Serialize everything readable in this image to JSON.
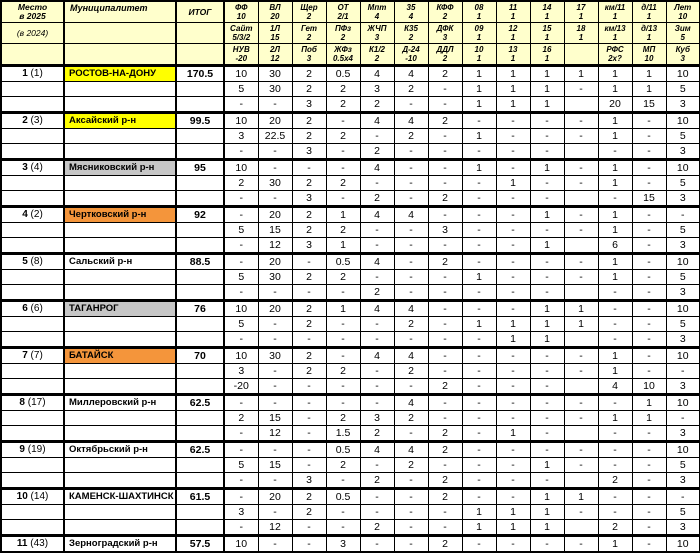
{
  "colors": {
    "header_bg": "#FFFFCC",
    "grid": "#000000",
    "highlights": {
      "yellow": "#FFFF00",
      "gray": "#C6C6C6",
      "orange": "#F4953B",
      "none": "#FFFFFF"
    }
  },
  "table": {
    "header": {
      "place": {
        "line1": "Место",
        "line2": "в 2025",
        "prev": "(в 2024)"
      },
      "municipality_label": "Муниципалитет",
      "total_label": "ИТОГ",
      "columns": [
        [
          [
            "ФФ",
            "10"
          ],
          [
            "Сайт",
            "5/3/2"
          ],
          [
            "НУВ",
            "-20"
          ]
        ],
        [
          [
            "ВЛ",
            "20"
          ],
          [
            "1Л",
            "15"
          ],
          [
            "2Л",
            "12"
          ]
        ],
        [
          [
            "Щер",
            "2"
          ],
          [
            "Гет",
            "2"
          ],
          [
            "Поб",
            "3"
          ]
        ],
        [
          [
            "ОТ",
            "2/1"
          ],
          [
            "ПФз",
            "2"
          ],
          [
            "ЖФз",
            "0.5х4"
          ]
        ],
        [
          [
            "Мпт",
            "4"
          ],
          [
            "ЖЧП",
            "3"
          ],
          [
            "К1/2",
            "2"
          ]
        ],
        [
          [
            "35",
            "4"
          ],
          [
            "К35",
            "2"
          ],
          [
            "Д-24",
            "-10"
          ]
        ],
        [
          [
            "КФФ",
            "2"
          ],
          [
            "ДФК",
            "3"
          ],
          [
            "ДДЛ",
            "2"
          ]
        ],
        [
          [
            "08",
            "1"
          ],
          [
            "09",
            "1"
          ],
          [
            "10",
            "1"
          ]
        ],
        [
          [
            "11",
            "1"
          ],
          [
            "12",
            "1"
          ],
          [
            "13",
            "1"
          ]
        ],
        [
          [
            "14",
            "1"
          ],
          [
            "15",
            "1"
          ],
          [
            "16",
            "1"
          ]
        ],
        [
          [
            "17",
            "1"
          ],
          [
            "18",
            "1"
          ],
          [
            "",
            ""
          ]
        ],
        [
          [
            "км/11",
            "1"
          ],
          [
            "км/13",
            "1"
          ],
          [
            "РФС",
            "2х?"
          ]
        ],
        [
          [
            "д/11",
            "1"
          ],
          [
            "д/13",
            "1"
          ],
          [
            "МП",
            "10"
          ]
        ],
        [
          [
            "Лет",
            "10"
          ],
          [
            "Зим",
            "5"
          ],
          [
            "Куб",
            "3"
          ]
        ]
      ]
    },
    "rows": [
      {
        "place": "1",
        "prev": "(1)",
        "name": "РОСТОВ-НА-ДОНУ",
        "highlight": "yellow",
        "total": "170.5",
        "sub": [
          [
            "10",
            "30",
            "2",
            "0.5",
            "4",
            "4",
            "2",
            "1",
            "1",
            "1",
            "1",
            "1",
            "1",
            "10"
          ],
          [
            "5",
            "30",
            "2",
            "2",
            "3",
            "2",
            "-",
            "1",
            "1",
            "1",
            "-",
            "1",
            "1",
            "5"
          ],
          [
            "-",
            "-",
            "3",
            "2",
            "2",
            "-",
            "-",
            "1",
            "1",
            "1",
            "",
            "20",
            "15",
            "3"
          ]
        ]
      },
      {
        "place": "2",
        "prev": "(3)",
        "name": "Аксайский р-н",
        "highlight": "yellow",
        "total": "99.5",
        "sub": [
          [
            "10",
            "20",
            "2",
            "-",
            "4",
            "4",
            "2",
            "-",
            "-",
            "-",
            "-",
            "1",
            "-",
            "10"
          ],
          [
            "3",
            "22.5",
            "2",
            "2",
            "-",
            "2",
            "-",
            "1",
            "-",
            "-",
            "-",
            "1",
            "-",
            "5"
          ],
          [
            "-",
            "-",
            "3",
            "-",
            "2",
            "-",
            "-",
            "-",
            "-",
            "-",
            "",
            "-",
            "-",
            "3"
          ]
        ]
      },
      {
        "place": "3",
        "prev": "(4)",
        "name": "Мясниковский р-н",
        "highlight": "gray",
        "total": "95",
        "sub": [
          [
            "10",
            "-",
            "-",
            "-",
            "4",
            "-",
            "-",
            "1",
            "-",
            "1",
            "-",
            "1",
            "-",
            "10"
          ],
          [
            "2",
            "30",
            "2",
            "2",
            "-",
            "-",
            "-",
            "-",
            "1",
            "-",
            "-",
            "1",
            "-",
            "5"
          ],
          [
            "-",
            "-",
            "3",
            "-",
            "2",
            "-",
            "2",
            "-",
            "-",
            "-",
            "",
            "-",
            "15",
            "3"
          ]
        ]
      },
      {
        "place": "4",
        "prev": "(2)",
        "name": "Чертковский р-н",
        "highlight": "orange",
        "total": "92",
        "sub": [
          [
            "-",
            "20",
            "2",
            "1",
            "4",
            "4",
            "-",
            "-",
            "-",
            "1",
            "-",
            "1",
            "-",
            "-"
          ],
          [
            "5",
            "15",
            "2",
            "2",
            "-",
            "-",
            "3",
            "-",
            "-",
            "-",
            "-",
            "1",
            "-",
            "5"
          ],
          [
            "-",
            "12",
            "3",
            "1",
            "-",
            "-",
            "-",
            "-",
            "-",
            "1",
            "",
            "6",
            "-",
            "3"
          ]
        ]
      },
      {
        "place": "5",
        "prev": "(8)",
        "name": "Сальский р-н",
        "highlight": "none",
        "total": "88.5",
        "sub": [
          [
            "-",
            "20",
            "-",
            "0.5",
            "4",
            "-",
            "2",
            "-",
            "-",
            "-",
            "-",
            "1",
            "-",
            "10"
          ],
          [
            "5",
            "30",
            "2",
            "2",
            "-",
            "-",
            "-",
            "1",
            "-",
            "-",
            "-",
            "1",
            "-",
            "5"
          ],
          [
            "-",
            "-",
            "-",
            "-",
            "2",
            "-",
            "-",
            "-",
            "-",
            "-",
            "",
            "-",
            "-",
            "3"
          ]
        ]
      },
      {
        "place": "6",
        "prev": "(6)",
        "name": "ТАГАНРОГ",
        "highlight": "gray",
        "total": "76",
        "sub": [
          [
            "10",
            "20",
            "2",
            "1",
            "4",
            "4",
            "-",
            "-",
            "-",
            "1",
            "1",
            "-",
            "-",
            "10"
          ],
          [
            "5",
            "-",
            "2",
            "-",
            "-",
            "2",
            "-",
            "1",
            "1",
            "1",
            "1",
            "-",
            "-",
            "5"
          ],
          [
            "-",
            "-",
            "-",
            "-",
            "-",
            "-",
            "-",
            "-",
            "1",
            "1",
            "",
            "-",
            "-",
            "3"
          ]
        ]
      },
      {
        "place": "7",
        "prev": "(7)",
        "name": "БАТАЙСК",
        "highlight": "orange",
        "total": "70",
        "sub": [
          [
            "10",
            "30",
            "2",
            "-",
            "4",
            "4",
            "-",
            "-",
            "-",
            "-",
            "-",
            "1",
            "-",
            "10"
          ],
          [
            "3",
            "-",
            "2",
            "2",
            "-",
            "2",
            "-",
            "-",
            "-",
            "-",
            "-",
            "1",
            "-",
            "-"
          ],
          [
            "-20",
            "-",
            "-",
            "-",
            "-",
            "-",
            "2",
            "-",
            "-",
            "-",
            "",
            "4",
            "10",
            "3"
          ]
        ]
      },
      {
        "place": "8",
        "prev": "(17)",
        "name": "Миллеровский р-н",
        "highlight": "none",
        "total": "62.5",
        "sub": [
          [
            "-",
            "-",
            "-",
            "-",
            "-",
            "4",
            "-",
            "-",
            "-",
            "-",
            "-",
            "-",
            "1",
            "10"
          ],
          [
            "2",
            "15",
            "-",
            "2",
            "3",
            "2",
            "-",
            "-",
            "-",
            "-",
            "-",
            "1",
            "1",
            "-"
          ],
          [
            "-",
            "12",
            "-",
            "1.5",
            "2",
            "-",
            "2",
            "-",
            "1",
            "-",
            "",
            "-",
            "-",
            "3"
          ]
        ]
      },
      {
        "place": "9",
        "prev": "(19)",
        "name": "Октябрьский р-н",
        "highlight": "none",
        "total": "62.5",
        "sub": [
          [
            "-",
            "-",
            "-",
            "0.5",
            "4",
            "4",
            "2",
            "-",
            "-",
            "-",
            "-",
            "-",
            "-",
            "10"
          ],
          [
            "5",
            "15",
            "-",
            "2",
            "-",
            "2",
            "-",
            "-",
            "-",
            "1",
            "-",
            "-",
            "-",
            "5"
          ],
          [
            "-",
            "-",
            "3",
            "-",
            "2",
            "-",
            "2",
            "-",
            "-",
            "-",
            "",
            "2",
            "-",
            "3"
          ]
        ]
      },
      {
        "place": "10",
        "prev": "(14)",
        "name": "КАМЕНСК-ШАХТИНСК",
        "highlight": "none",
        "total": "61.5",
        "sub": [
          [
            "-",
            "20",
            "2",
            "0.5",
            "-",
            "-",
            "2",
            "-",
            "-",
            "1",
            "1",
            "-",
            "-",
            "-"
          ],
          [
            "3",
            "-",
            "2",
            "-",
            "-",
            "-",
            "-",
            "1",
            "1",
            "1",
            "-",
            "-",
            "-",
            "5"
          ],
          [
            "-",
            "12",
            "-",
            "-",
            "2",
            "-",
            "-",
            "1",
            "1",
            "1",
            "",
            "2",
            "-",
            "3"
          ]
        ]
      },
      {
        "place": "11",
        "prev": "(43)",
        "name": "Зерноградский р-н",
        "highlight": "none",
        "total": "57.5",
        "sub": [
          [
            "10",
            "-",
            "-",
            "3",
            "-",
            "-",
            "2",
            "-",
            "-",
            "-",
            "-",
            "1",
            "-",
            "10"
          ]
        ]
      }
    ]
  }
}
